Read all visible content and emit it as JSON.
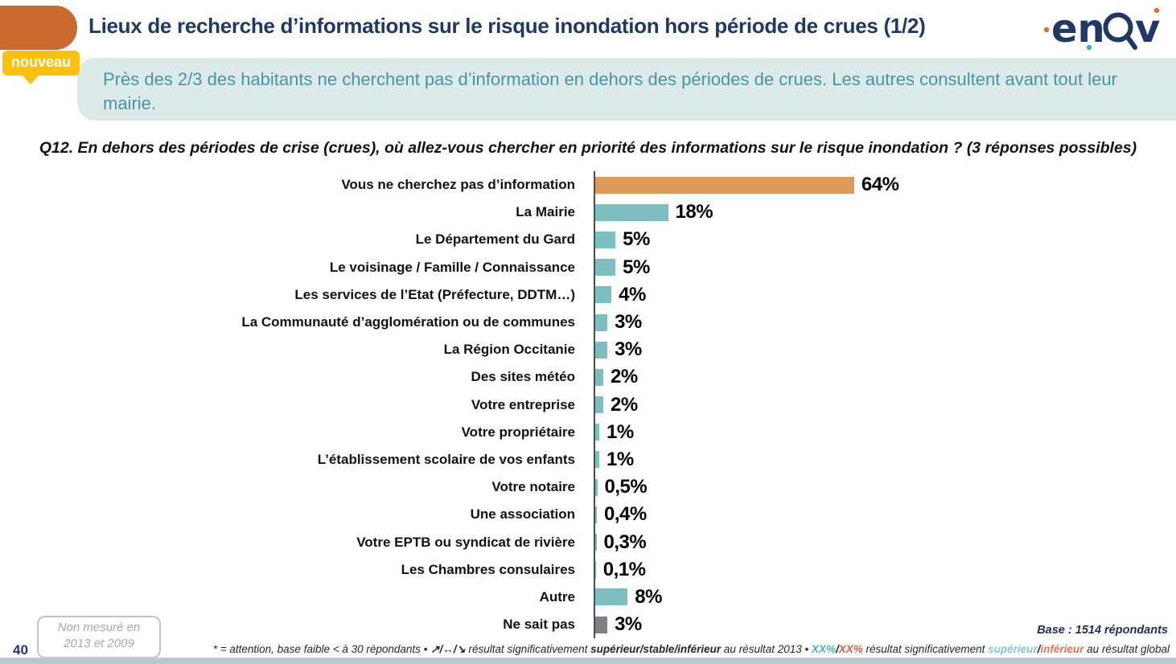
{
  "header": {
    "title": "Lieux de recherche d’informations sur le risque inondation hors période de crues (1/2)",
    "badge": "nouveau",
    "logo": "enov"
  },
  "banner": {
    "text": "Près des 2/3 des habitants ne cherchent pas d’information en dehors des périodes de crues. Les autres consultent avant tout leur mairie."
  },
  "question": {
    "text": "Q12. En dehors des périodes de crise (crues), où allez-vous chercher en priorité des informations sur le risque inondation ? (3 réponses possibles)"
  },
  "chart_data": {
    "type": "bar",
    "orientation": "horizontal",
    "title": "",
    "xlabel": "",
    "ylabel": "",
    "xlim": [
      0,
      70
    ],
    "unit": "%",
    "grid": false,
    "legend_position": "none",
    "categories": [
      "Vous ne cherchez pas d’information",
      "La Mairie",
      "Le Département du Gard",
      "Le voisinage / Famille / Connaissance",
      "Les services de l’Etat (Préfecture, DDTM…)",
      "La Communauté d’agglomération ou de communes",
      "La Région Occitanie",
      "Des sites météo",
      "Votre entreprise",
      "Votre propriétaire",
      "L’établissement scolaire de vos enfants",
      "Votre notaire",
      "Une association",
      "Votre EPTB ou syndicat de rivière",
      "Les Chambres consulaires",
      "Autre",
      "Ne sait pas"
    ],
    "values": [
      64,
      18,
      5,
      5,
      4,
      3,
      3,
      2,
      2,
      1,
      1,
      0.5,
      0.4,
      0.3,
      0.1,
      8,
      3
    ],
    "value_labels": [
      "64%",
      "18%",
      "5%",
      "5%",
      "4%",
      "3%",
      "3%",
      "2%",
      "2%",
      "1%",
      "1%",
      "0,5%",
      "0,4%",
      "0,3%",
      "0,1%",
      "8%",
      "3%"
    ],
    "bar_colors": [
      "#DF9A5B",
      "#7DBFC0",
      "#7DBFC0",
      "#7DBFC0",
      "#7DBFC0",
      "#7DBFC0",
      "#7DBFC0",
      "#7DBFC0",
      "#7DBFC0",
      "#7DBFC0",
      "#7DBFC0",
      "#7DBFC0",
      "#7DBFC0",
      "#7DBFC0",
      "#7DBFC0",
      "#7DBFC0",
      "#808080"
    ],
    "colors": {
      "highlight": "#DF9A5B",
      "default": "#7DBFC0",
      "no_answer": "#808080",
      "axis": "#4d4d4d"
    }
  },
  "footer": {
    "page_number": "40",
    "not_measured_line1": "Non mesuré en",
    "not_measured_line2": "2013 et 2009",
    "base": "Base : 1514 répondants",
    "legend": [
      {
        "text": "* = attention, base faible < à 30 répondants • ",
        "style": "plain"
      },
      {
        "text": "↗/↔/↘",
        "style": "bold"
      },
      {
        "text": " résultat significativement ",
        "style": "plain"
      },
      {
        "text": "supérieur/stable/inférieur",
        "style": "bold"
      },
      {
        "text": " au résultat 2013 • ",
        "style": "plain"
      },
      {
        "text": "XX%",
        "style": "teal"
      },
      {
        "text": "/",
        "style": "bold"
      },
      {
        "text": "XX%",
        "style": "red"
      },
      {
        "text": " résultat significativement ",
        "style": "plain"
      },
      {
        "text": "supérieur",
        "style": "lightteal"
      },
      {
        "text": "/",
        "style": "bold"
      },
      {
        "text": "inférieur",
        "style": "orange"
      },
      {
        "text": " au résultat global",
        "style": "plain"
      }
    ]
  }
}
